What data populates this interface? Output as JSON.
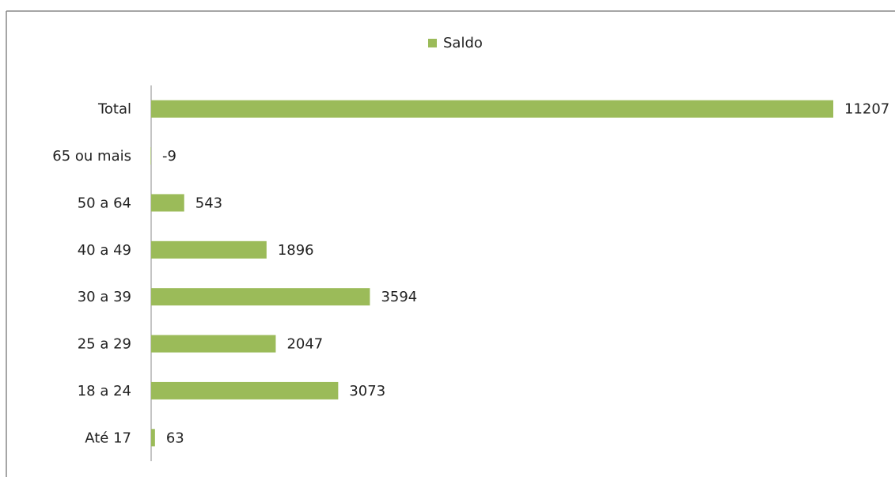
{
  "chart_data": {
    "type": "bar",
    "orientation": "horizontal",
    "categories": [
      "Total",
      "65 ou mais",
      "50 a 64",
      "40 a 49",
      "30 a 39",
      "25 a 29",
      "18 a 24",
      "Até 17"
    ],
    "series": [
      {
        "name": "Saldo",
        "color": "#9bbb59",
        "values": [
          11207,
          -9,
          543,
          1896,
          3594,
          2047,
          3073,
          63
        ]
      }
    ],
    "xlim": [
      0,
      12000
    ],
    "legend": "top"
  }
}
